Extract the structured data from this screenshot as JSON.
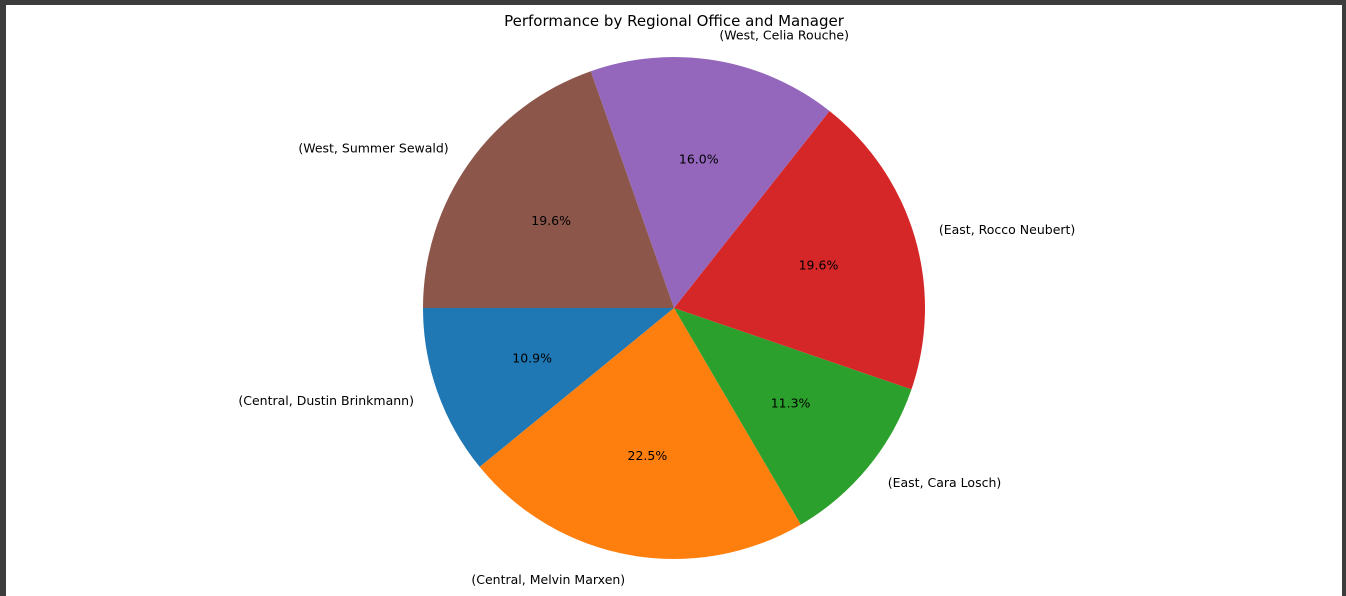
{
  "chart_data": {
    "type": "pie",
    "title": "Performance by Regional Office and Manager",
    "start_angle_deg": 180,
    "direction": "counterclockwise",
    "slices": [
      {
        "label": "(Central, Dustin Brinkmann)",
        "value": 10.9,
        "pct_label": "10.9%",
        "color": "#1f77b4"
      },
      {
        "label": "(Central, Melvin Marxen)",
        "value": 22.5,
        "pct_label": "22.5%",
        "color": "#ff7f0e"
      },
      {
        "label": "(East, Cara Losch)",
        "value": 11.3,
        "pct_label": "11.3%",
        "color": "#2ca02c"
      },
      {
        "label": "(East, Rocco Neubert)",
        "value": 19.6,
        "pct_label": "19.6%",
        "color": "#d62728"
      },
      {
        "label": "(West, Celia Rouche)",
        "value": 16.0,
        "pct_label": "16.0%",
        "color": "#9467bd"
      },
      {
        "label": "(West, Summer Sewald)",
        "value": 19.6,
        "pct_label": "19.6%",
        "color": "#8c564b"
      }
    ]
  }
}
